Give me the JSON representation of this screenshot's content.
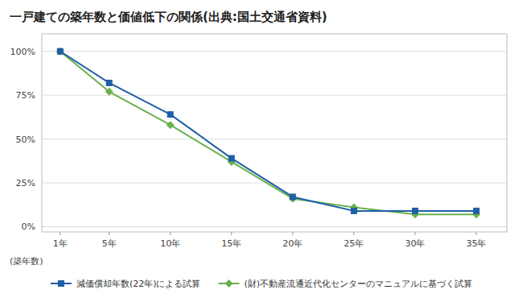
{
  "chart_data": {
    "type": "line",
    "title": "一戸建ての築年数と価値低下の関係(出典:国土交通省資料)",
    "xlabel": "(築年数)",
    "x": [
      1,
      5,
      10,
      15,
      20,
      25,
      30,
      35
    ],
    "xlim": [
      -0.5,
      37.5
    ],
    "xticks": [
      {
        "value": 1,
        "label": "1年"
      },
      {
        "value": 5,
        "label": "5年"
      },
      {
        "value": 10,
        "label": "10年"
      },
      {
        "value": 15,
        "label": "15年"
      },
      {
        "value": 20,
        "label": "20年"
      },
      {
        "value": 25,
        "label": "25年"
      },
      {
        "value": 30,
        "label": "30年"
      },
      {
        "value": 35,
        "label": "35年"
      }
    ],
    "ylim": [
      -0.03,
      1.1
    ],
    "yticks": [
      {
        "value": 0,
        "label": "0%"
      },
      {
        "value": 0.25,
        "label": "25%"
      },
      {
        "value": 0.5,
        "label": "50%"
      },
      {
        "value": 0.75,
        "label": "75%"
      },
      {
        "value": 1.0,
        "label": "100%"
      }
    ],
    "grid": true,
    "legend": "bottom",
    "series": [
      {
        "name": "減価償却年数(22年)による試算",
        "color": "#1f5fa6",
        "marker": "square",
        "values": [
          1.0,
          0.82,
          0.64,
          0.39,
          0.17,
          0.09,
          0.09,
          0.09
        ]
      },
      {
        "name": "(財)不動産流通近代化センターのマニュアルに基づく試算",
        "color": "#6ab04c",
        "marker": "diamond",
        "values": [
          1.0,
          0.77,
          0.58,
          0.37,
          0.16,
          0.11,
          0.07,
          0.07
        ]
      }
    ]
  }
}
